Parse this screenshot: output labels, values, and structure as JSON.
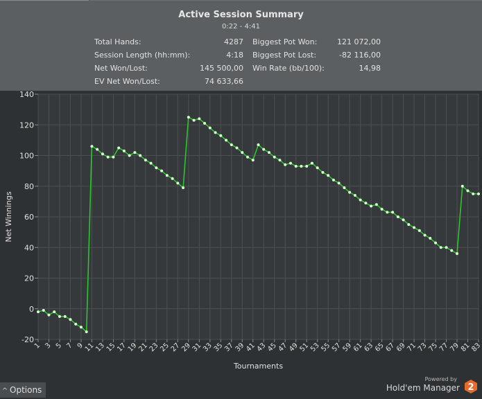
{
  "summary": {
    "title": "Active Session Summary",
    "range": "0:22 - 4:41",
    "left": [
      {
        "label": "Total Hands:",
        "value": "4287"
      },
      {
        "label": "Session Length (hh:mm):",
        "value": "4:18"
      },
      {
        "label": "Net Won/Lost:",
        "value": "145 500,00"
      },
      {
        "label": "EV Net Won/Lost:",
        "value": "74 633,66"
      }
    ],
    "right": [
      {
        "label": "Biggest Pot Won:",
        "value": "121 072,00"
      },
      {
        "label": "Biggest Pot Lost:",
        "value": "-82 116,00"
      },
      {
        "label": "Win Rate (bb/100):",
        "value": "14,98"
      }
    ]
  },
  "chart_data": {
    "type": "line",
    "xlabel": "Tournaments",
    "ylabel": "Net Winnings",
    "ylim": [
      -20,
      140
    ],
    "yticks": [
      -20,
      0,
      20,
      40,
      60,
      80,
      100,
      120,
      140
    ],
    "xticks": [
      "1",
      "3",
      "5",
      "7",
      "9",
      "11",
      "13",
      "15",
      "17",
      "19",
      "21",
      "23",
      "25",
      "27",
      "29",
      "31",
      "33",
      "35",
      "37",
      "39",
      "41",
      "43",
      "45",
      "47",
      "49",
      "51",
      "53",
      "55",
      "57",
      "59",
      "61",
      "63",
      "65",
      "67",
      "69",
      "71",
      "73",
      "75",
      "77",
      "79",
      "81",
      "83"
    ],
    "grid": true,
    "series": [
      {
        "name": "Net Winnings",
        "color": "#2ec42e",
        "x": [
          1,
          2,
          3,
          4,
          5,
          6,
          7,
          8,
          9,
          10,
          11,
          12,
          13,
          14,
          15,
          16,
          17,
          18,
          19,
          20,
          21,
          22,
          23,
          24,
          25,
          26,
          27,
          28,
          29,
          30,
          31,
          32,
          33,
          34,
          35,
          36,
          37,
          38,
          39,
          40,
          41,
          42,
          43,
          44,
          45,
          46,
          47,
          48,
          49,
          50,
          51,
          52,
          53,
          54,
          55,
          56,
          57,
          58,
          59,
          60,
          61,
          62,
          63,
          64,
          65,
          66,
          67,
          68,
          69,
          70,
          71,
          72,
          73,
          74,
          75,
          76,
          77,
          78,
          79,
          80,
          81,
          82,
          83
        ],
        "values": [
          -2,
          -1,
          -4,
          -2,
          -5,
          -5,
          -7,
          -10,
          -12,
          -15,
          106,
          104,
          101,
          99,
          99,
          105,
          103,
          100,
          102,
          100,
          97,
          95,
          92,
          90,
          87,
          85,
          82,
          79,
          125,
          123,
          124,
          121,
          118,
          115,
          113,
          110,
          107,
          105,
          102,
          99,
          97,
          107,
          104,
          102,
          99,
          97,
          94,
          95,
          93,
          93,
          93,
          95,
          92,
          89,
          87,
          84,
          82,
          79,
          76,
          74,
          71,
          69,
          67,
          68,
          65,
          63,
          63,
          60,
          58,
          55,
          53,
          51,
          48,
          46,
          43,
          40,
          40,
          38,
          36,
          80,
          77,
          75,
          75
        ]
      }
    ]
  },
  "footer": {
    "options_label": "Options",
    "powered_by": "Powered by",
    "brand": "Hold'em Manager",
    "logo_number": "2",
    "logo_color": "#e8692a"
  }
}
